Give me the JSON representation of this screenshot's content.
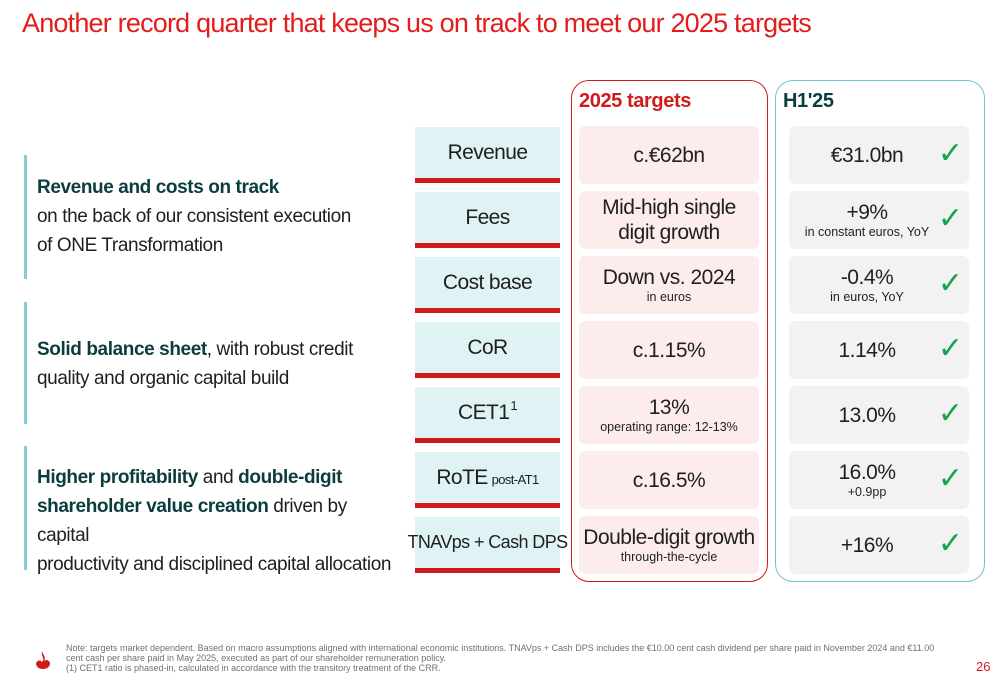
{
  "title": "Another record quarter that keeps us on track to meet our 2025 targets",
  "statements": [
    {
      "bold1": "Revenue and costs on track",
      "text1": "on the back of our consistent execution",
      "text2": "of ONE Transformation"
    },
    {
      "bold1": "Solid balance sheet",
      "text1": ", with robust credit",
      "text2": "quality and organic capital build"
    },
    {
      "bold1": "Higher profitability",
      "text1": " and ",
      "bold2": "double-digit",
      "bold3": "shareholder value creation",
      "text2": " driven by capital",
      "text3": "productivity and disciplined capital allocation"
    }
  ],
  "columns": {
    "targets": "2025 targets",
    "actual": "H1'25"
  },
  "rows": [
    {
      "label": "Revenue",
      "target_main": "c.€62bn",
      "target_sub": "",
      "actual_main": "€31.0bn",
      "actual_sub": ""
    },
    {
      "label": "Fees",
      "target_main": "Mid-high single",
      "target_main2": "digit growth",
      "target_sub": "",
      "actual_main": "+9%",
      "actual_sub": "in constant euros, YoY"
    },
    {
      "label": "Cost base",
      "target_main": "Down vs. 2024",
      "target_sub": "in euros",
      "actual_main": "-0.4%",
      "actual_sub": "in euros, YoY"
    },
    {
      "label": "CoR",
      "target_main": "c.1.15%",
      "target_sub": "",
      "actual_main": "1.14%",
      "actual_sub": ""
    },
    {
      "label": "CET1",
      "label_sup": "1",
      "target_main": "13%",
      "target_sub": "operating range: 12-13%",
      "actual_main": "13.0%",
      "actual_sub": ""
    },
    {
      "label": "RoTE",
      "label_small": "post-AT1",
      "target_main": "c.16.5%",
      "target_sub": "",
      "actual_main": "16.0%",
      "actual_sub": "+0.9pp"
    },
    {
      "label": "TNAVps + Cash DPS",
      "target_main": "Double-digit growth",
      "target_sub": "through-the-cycle",
      "actual_main": "+16%",
      "actual_sub": ""
    }
  ],
  "check_glyph": "✓",
  "check_icon": "checkmark-icon",
  "footer": {
    "line1": "Note: targets market dependent. Based on macro assumptions aligned with international economic institutions. TNAVps + Cash DPS includes the €10.00 cent cash dividend per share paid in November 2024 and €11.00",
    "line2": "cent cash per share paid in May 2025, executed as part of our shareholder remuneration policy.",
    "line3": "(1) CET1 ratio is phased-in, calculated in accordance with the transitory treatment of the CRR."
  },
  "page_number": "26",
  "colors": {
    "brand_red": "#d11b1b",
    "teal": "#6cc6cf",
    "check_green": "#14a44d"
  }
}
